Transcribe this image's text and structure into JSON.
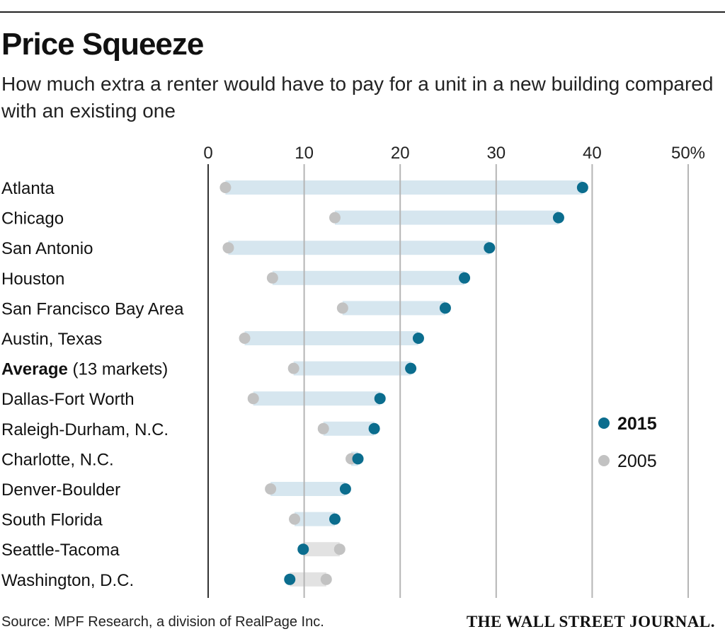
{
  "title": "Price Squeeze",
  "subtitle": "How much extra a renter would have to pay for a unit in a new building compared with an existing one",
  "source": "Source: MPF Research, a division of RealPage Inc.",
  "logo": "THE WALL STREET JOURNAL.",
  "colors": {
    "y2015": "#0b6d8e",
    "y2005": "#c2c2c2",
    "bar_up": "#d6e6ef",
    "bar_down": "#e2e2e2",
    "grid": "#b5b5b5",
    "zero": "#333333"
  },
  "chart_data": {
    "type": "dumbbell",
    "xlim": [
      0,
      50
    ],
    "x_ticks": [
      "0",
      "10",
      "20",
      "30",
      "40",
      "50%"
    ],
    "grid": true,
    "legend_position": "right",
    "series": [
      {
        "name": "2015"
      },
      {
        "name": "2005"
      }
    ],
    "rows": [
      {
        "label": "Atlanta",
        "v2005": 1.8,
        "v2015": 39.0
      },
      {
        "label": "Chicago",
        "v2005": 13.2,
        "v2015": 36.5
      },
      {
        "label": "San Antonio",
        "v2005": 2.1,
        "v2015": 29.3
      },
      {
        "label": "Houston",
        "v2005": 6.7,
        "v2015": 26.7
      },
      {
        "label": "San Francisco Bay Area",
        "v2005": 14.0,
        "v2015": 24.7
      },
      {
        "label": "Austin, Texas",
        "v2005": 3.8,
        "v2015": 21.9
      },
      {
        "label": "Average",
        "label_extra": " (13 markets)",
        "bold": true,
        "v2005": 8.9,
        "v2015": 21.1
      },
      {
        "label": "Dallas-Fort Worth",
        "v2005": 4.7,
        "v2015": 17.9
      },
      {
        "label": "Raleigh-Durham, N.C.",
        "v2005": 12.0,
        "v2015": 17.3
      },
      {
        "label": "Charlotte, N.C.",
        "v2005": 14.9,
        "v2015": 15.6
      },
      {
        "label": "Denver-Boulder",
        "v2005": 6.5,
        "v2015": 14.3
      },
      {
        "label": "South Florida",
        "v2005": 9.0,
        "v2015": 13.2
      },
      {
        "label": "Seattle-Tacoma",
        "v2005": 13.7,
        "v2015": 9.9
      },
      {
        "label": "Washington, D.C.",
        "v2005": 12.3,
        "v2015": 8.5
      }
    ]
  }
}
